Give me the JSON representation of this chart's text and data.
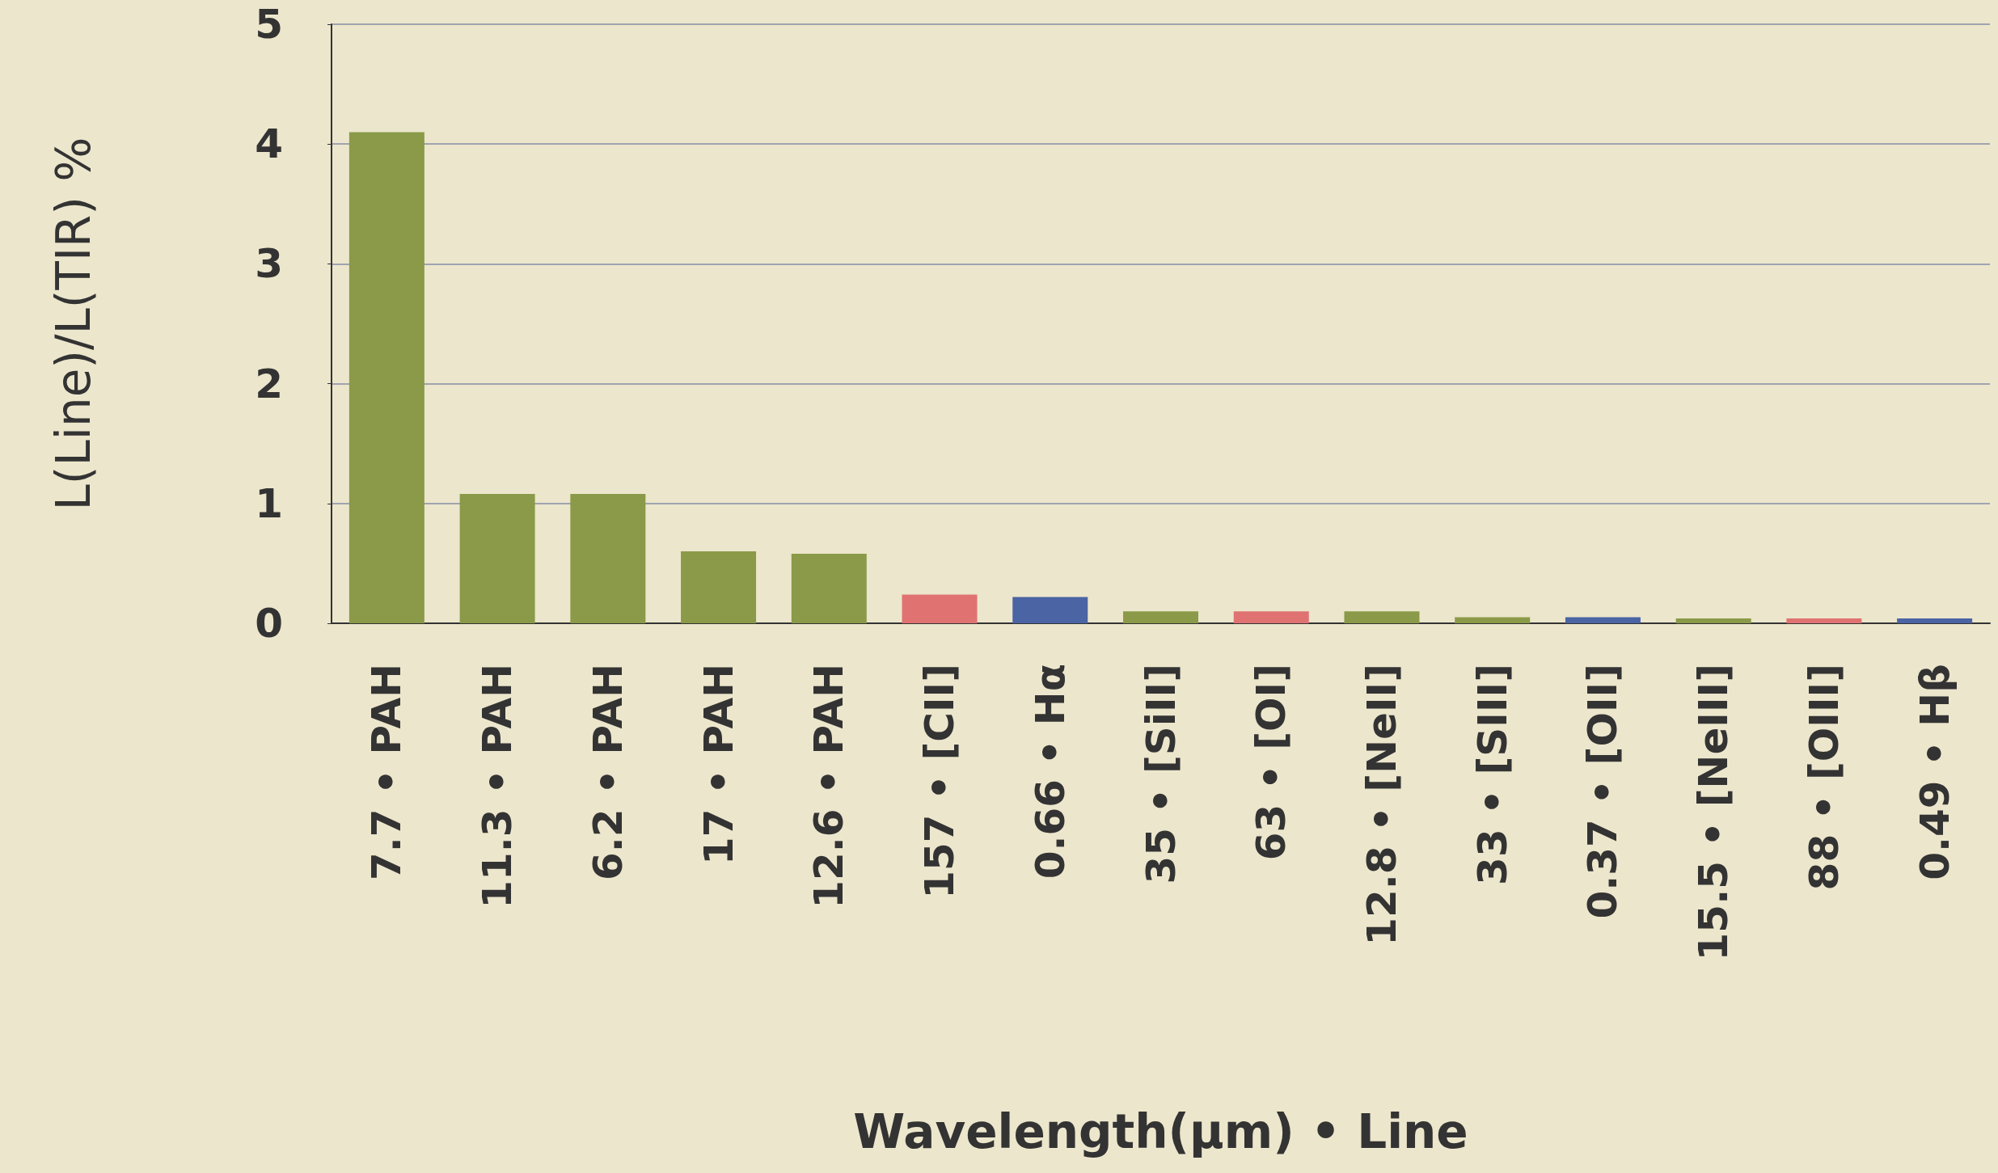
{
  "chart_data": {
    "type": "bar",
    "xlabel": "Wavelength(μm) • Line",
    "ylabel": "L(Line)/L(TIR) %",
    "categories": [
      "7.7 • PAH",
      "11.3 • PAH",
      "6.2 • PAH",
      "17 • PAH",
      "12.6 • PAH",
      "157 • [CII]",
      "0.66 • Hα",
      "35 • [SiII]",
      "63 • [OI]",
      "12.8 • [NeII]",
      "33 • [SIII]",
      "0.37 • [OII]",
      "15.5 • [NeIII]",
      "88 • [OIII]",
      "0.49 • Hβ"
    ],
    "values": [
      4.1,
      1.08,
      1.08,
      0.6,
      0.58,
      0.24,
      0.22,
      0.1,
      0.1,
      0.1,
      0.05,
      0.05,
      0.04,
      0.04,
      0.04
    ],
    "colors": [
      "#8a9a48",
      "#8a9a48",
      "#8a9a48",
      "#8a9a48",
      "#8a9a48",
      "#e07272",
      "#4a64a4",
      "#8a9a48",
      "#e07272",
      "#8a9a48",
      "#8a9a48",
      "#4a64a4",
      "#8a9a48",
      "#e07272",
      "#4a64a4"
    ],
    "ylim": [
      0,
      5
    ],
    "yticks": [
      0,
      1,
      2,
      3,
      4,
      5
    ],
    "grid": "y"
  }
}
